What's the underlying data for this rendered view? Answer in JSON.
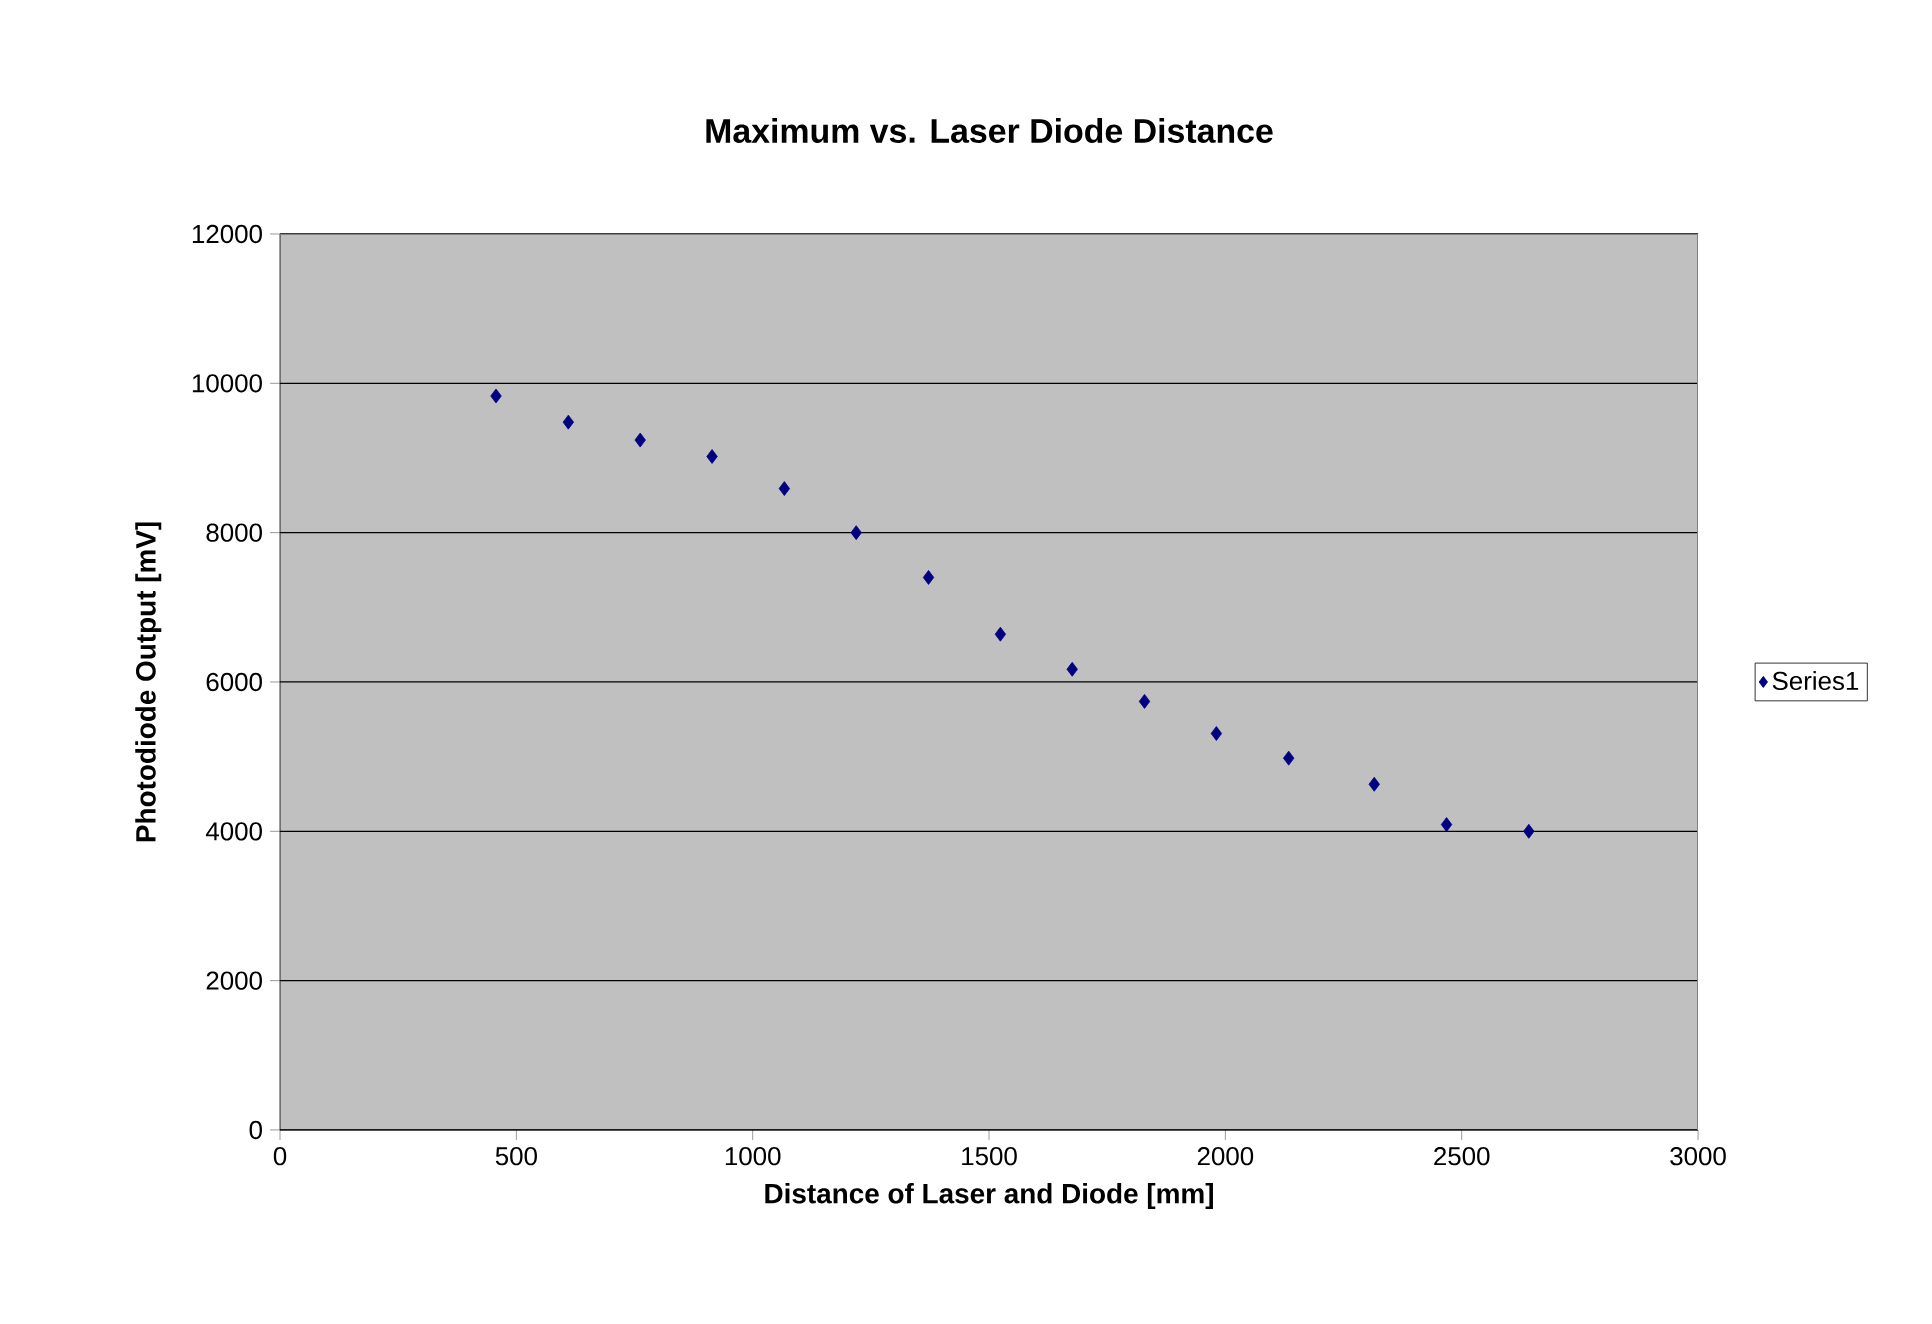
{
  "chart_data": {
    "type": "scatter",
    "title": "Maximum vs. Laser Diode Distance",
    "xlabel": "Distance of Laser and Diode [mm]",
    "ylabel": "Photodiode Output [mV]",
    "x": [
      457,
      610,
      762,
      914,
      1067,
      1219,
      1372,
      1524,
      1676,
      1829,
      1981,
      2134,
      2315,
      2468,
      2642
    ],
    "series": [
      {
        "name": "Series1",
        "color": "#000080",
        "values": [
          9830,
          9480,
          9240,
          9020,
          8590,
          8000,
          7400,
          6640,
          6170,
          5740,
          5310,
          4980,
          4630,
          4090,
          4000
        ]
      }
    ],
    "xlim": [
      0,
      3000
    ],
    "ylim": [
      0,
      12000
    ],
    "xticks": [
      0,
      500,
      1000,
      1500,
      2000,
      2500,
      3000
    ],
    "yticks": [
      0,
      2000,
      4000,
      6000,
      8000,
      10000,
      12000
    ],
    "grid": "y",
    "legend": "right",
    "marker": "diamond"
  }
}
